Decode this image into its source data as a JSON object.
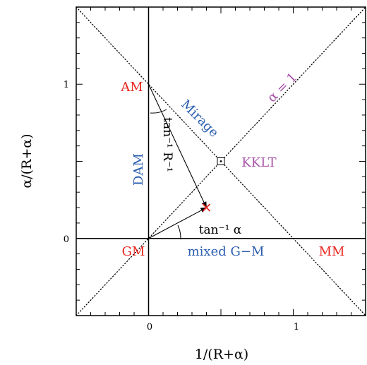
{
  "axes": {
    "x_title": "1/(R+α)",
    "y_title": "α/(R+α)",
    "x_ticks": [
      "0",
      "1"
    ],
    "y_ticks": [
      "0",
      "1"
    ]
  },
  "labels": {
    "am": "AM",
    "gm": "GM",
    "mm": "MM",
    "dam": "DAM",
    "mirage": "Mirage",
    "kklt": "KKLT",
    "alpha_one": "α = 1",
    "mixed_gm": "mixed G−M",
    "tan_r": "tan⁻¹ R⁻¹",
    "tan_alpha": "tan⁻¹ α"
  },
  "colors": {
    "red": "#e8241c",
    "blue": "#2a5db0",
    "purple": "#a652a6",
    "black": "#000000"
  },
  "chart_data": {
    "type": "diagram",
    "xlim": [
      -0.5,
      1.5
    ],
    "ylim": [
      -0.5,
      1.5
    ],
    "lines": [
      {
        "kind": "dotted",
        "from": [
          -0.5,
          -0.5
        ],
        "to": [
          1.5,
          1.5
        ]
      },
      {
        "kind": "dotted",
        "from": [
          -0.5,
          1.5
        ],
        "to": [
          1.5,
          -0.5
        ]
      },
      {
        "kind": "solid",
        "from": [
          0,
          -0.5
        ],
        "to": [
          0,
          1.5
        ]
      },
      {
        "kind": "solid",
        "from": [
          -0.5,
          0
        ],
        "to": [
          1.5,
          0
        ]
      }
    ],
    "arrows": [
      {
        "from": [
          0,
          1
        ],
        "to": [
          0.4,
          0.2
        ]
      },
      {
        "from": [
          0,
          0
        ],
        "to": [
          0.4,
          0.2
        ]
      }
    ],
    "points": [
      {
        "marker": "square-dot",
        "x": 0.5,
        "y": 0.5
      },
      {
        "marker": "cross",
        "x": 0.4,
        "y": 0.2
      }
    ]
  }
}
